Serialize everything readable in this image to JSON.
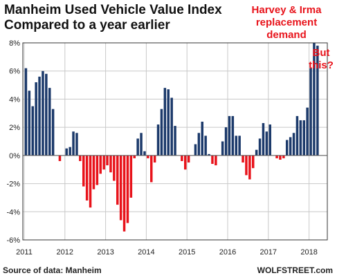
{
  "chart_data": {
    "type": "bar",
    "title": [
      "Manheim Used Vehicle Value Index",
      "Compared to a year earlier"
    ],
    "annotations": [
      {
        "lines": [
          "Harvey & Irma",
          "replacement",
          "demand"
        ]
      },
      {
        "lines": [
          "But",
          "this?"
        ]
      }
    ],
    "ylim": [
      -6,
      8
    ],
    "yticks": [
      8,
      6,
      4,
      2,
      0,
      -2,
      -4,
      -6
    ],
    "ytick_labels": [
      "8%",
      "6%",
      "4%",
      "2%",
      "0%",
      "-2%",
      "-4%",
      "-6%"
    ],
    "xtick_labels": [
      "2011",
      "2012",
      "2013",
      "2014",
      "2015",
      "2016",
      "2017",
      "2018"
    ],
    "grid": true,
    "colors": {
      "positive": "#1c3a6b",
      "negative": "#e8131b",
      "grid": "#c8c8c8",
      "axis": "#333333"
    },
    "x": [
      "Jan-2011",
      "Feb-2011",
      "Mar-2011",
      "Apr-2011",
      "May-2011",
      "Jun-2011",
      "Jul-2011",
      "Aug-2011",
      "Sep-2011",
      "Oct-2011",
      "Nov-2011",
      "Dec-2011",
      "Jan-2012",
      "Feb-2012",
      "Mar-2012",
      "Apr-2012",
      "May-2012",
      "Jun-2012",
      "Jul-2012",
      "Aug-2012",
      "Sep-2012",
      "Oct-2012",
      "Nov-2012",
      "Dec-2012",
      "Jan-2013",
      "Feb-2013",
      "Mar-2013",
      "Apr-2013",
      "May-2013",
      "Jun-2013",
      "Jul-2013",
      "Aug-2013",
      "Sep-2013",
      "Oct-2013",
      "Nov-2013",
      "Dec-2013",
      "Jan-2014",
      "Feb-2014",
      "Mar-2014",
      "Apr-2014",
      "May-2014",
      "Jun-2014",
      "Jul-2014",
      "Aug-2014",
      "Sep-2014",
      "Oct-2014",
      "Nov-2014",
      "Dec-2014",
      "Jan-2015",
      "Feb-2015",
      "Mar-2015",
      "Apr-2015",
      "May-2015",
      "Jun-2015",
      "Jul-2015",
      "Aug-2015",
      "Sep-2015",
      "Oct-2015",
      "Nov-2015",
      "Dec-2015",
      "Jan-2016",
      "Feb-2016",
      "Mar-2016",
      "Apr-2016",
      "May-2016",
      "Jun-2016",
      "Jul-2016",
      "Aug-2016",
      "Sep-2016",
      "Oct-2016",
      "Nov-2016",
      "Dec-2016",
      "Jan-2017",
      "Feb-2017",
      "Mar-2017",
      "Apr-2017",
      "May-2017",
      "Jun-2017",
      "Jul-2017",
      "Aug-2017",
      "Sep-2017",
      "Oct-2017",
      "Nov-2017",
      "Dec-2017",
      "Jan-2018",
      "Feb-2018",
      "Mar-2018"
    ],
    "values": [
      6.2,
      4.6,
      3.5,
      5.2,
      5.6,
      6.0,
      5.8,
      4.8,
      3.3,
      0.0,
      -0.4,
      0.0,
      0.5,
      0.6,
      1.7,
      1.6,
      -0.4,
      -2.2,
      -3.2,
      -3.7,
      -2.4,
      -2.1,
      -1.3,
      -1.0,
      -0.7,
      -1.2,
      -1.8,
      -3.5,
      -4.6,
      -5.4,
      -4.8,
      -3.0,
      -0.2,
      1.2,
      1.6,
      0.3,
      -0.2,
      -1.9,
      -0.5,
      2.2,
      3.3,
      4.8,
      4.7,
      4.1,
      2.1,
      0.0,
      -0.4,
      -1.0,
      -0.5,
      0.0,
      0.8,
      1.6,
      2.4,
      1.4,
      0.1,
      -0.6,
      -0.7,
      0.0,
      1.0,
      2.0,
      2.8,
      2.8,
      1.4,
      1.4,
      -0.5,
      -1.4,
      -1.7,
      -0.9,
      0.4,
      1.2,
      2.3,
      1.7,
      2.2,
      0.0,
      -0.2,
      -0.3,
      -0.2,
      1.1,
      1.3,
      1.6,
      2.8,
      2.5,
      2.5,
      3.4,
      6.2,
      8.0,
      7.8
    ]
  },
  "footer": {
    "source": "Source of data: Manheim",
    "brand": "WOLFSTREET.com"
  }
}
